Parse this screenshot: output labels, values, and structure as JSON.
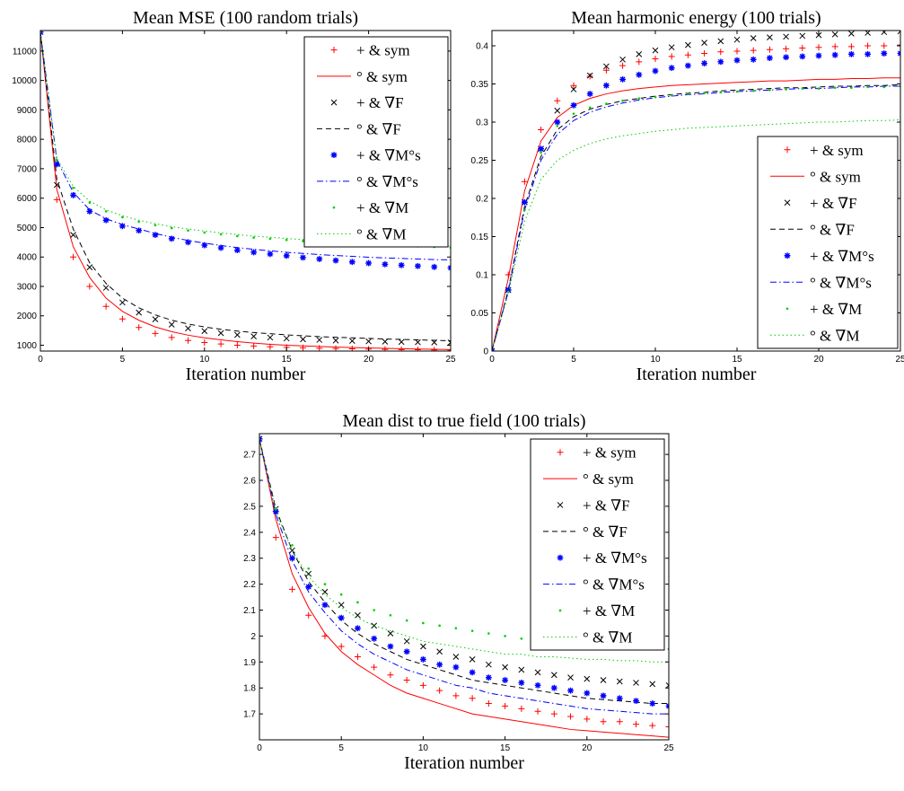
{
  "chart_data": [
    {
      "type": "line",
      "title": "Mean MSE (100 random trials)",
      "xlabel": "Iteration number",
      "ylabel": "",
      "xlim": [
        0,
        25
      ],
      "ylim": [
        800,
        11700
      ],
      "xticks": [
        0,
        5,
        10,
        15,
        20,
        25
      ],
      "yticks": [
        1000,
        2000,
        3000,
        4000,
        5000,
        6000,
        7000,
        8000,
        9000,
        10000,
        11000
      ],
      "grid": false,
      "legend_position": "top-right",
      "x": [
        0,
        1,
        2,
        3,
        4,
        5,
        6,
        7,
        8,
        9,
        10,
        11,
        12,
        13,
        14,
        15,
        16,
        17,
        18,
        19,
        20,
        21,
        22,
        23,
        24,
        25
      ],
      "series": [
        {
          "name": "+ & sym",
          "style": "plus",
          "color": "#ff0000",
          "values": [
            11650,
            5950,
            4000,
            3000,
            2320,
            1890,
            1600,
            1400,
            1260,
            1160,
            1090,
            1040,
            1000,
            970,
            945,
            925,
            910,
            895,
            885,
            875,
            865,
            858,
            850,
            845,
            840,
            835
          ]
        },
        {
          "name": "° & sym",
          "style": "solid",
          "color": "#ff0000",
          "values": [
            11650,
            6300,
            4350,
            3300,
            2600,
            2150,
            1850,
            1620,
            1460,
            1340,
            1250,
            1180,
            1120,
            1070,
            1030,
            1000,
            975,
            955,
            935,
            920,
            905,
            890,
            880,
            870,
            860,
            850
          ]
        },
        {
          "name": "+ & ∇F",
          "style": "x",
          "color": "#000000",
          "values": [
            11650,
            6450,
            4750,
            3650,
            2950,
            2450,
            2110,
            1880,
            1700,
            1570,
            1480,
            1410,
            1350,
            1300,
            1260,
            1230,
            1200,
            1180,
            1160,
            1145,
            1130,
            1120,
            1110,
            1100,
            1095,
            1090
          ]
        },
        {
          "name": "° & ∇F",
          "style": "dashed",
          "color": "#000000",
          "values": [
            11650,
            6650,
            4950,
            3800,
            3100,
            2600,
            2270,
            2030,
            1850,
            1720,
            1620,
            1540,
            1480,
            1430,
            1390,
            1350,
            1320,
            1290,
            1270,
            1250,
            1230,
            1210,
            1195,
            1180,
            1165,
            1150
          ]
        },
        {
          "name": "+ & ∇M°s",
          "style": "asterisk",
          "color": "#0000ff",
          "values": [
            11650,
            7150,
            6100,
            5550,
            5250,
            5050,
            4900,
            4750,
            4620,
            4500,
            4400,
            4310,
            4230,
            4160,
            4100,
            4040,
            3980,
            3930,
            3880,
            3830,
            3790,
            3750,
            3720,
            3690,
            3660,
            3630
          ]
        },
        {
          "name": "° & ∇M°s",
          "style": "dashdot",
          "color": "#0000ff",
          "values": [
            11650,
            7300,
            6200,
            5600,
            5300,
            5100,
            4950,
            4800,
            4670,
            4560,
            4470,
            4390,
            4320,
            4260,
            4210,
            4160,
            4120,
            4080,
            4050,
            4020,
            3990,
            3970,
            3950,
            3930,
            3910,
            3900
          ]
        },
        {
          "name": "+ & ∇M",
          "style": "dot",
          "color": "#00cc00",
          "values": [
            11650,
            7300,
            6350,
            5850,
            5550,
            5350,
            5200,
            5080,
            4980,
            4900,
            4830,
            4770,
            4710,
            4660,
            4620,
            4580,
            4540,
            4510,
            4480,
            4450,
            4420,
            4400,
            4380,
            4360,
            4340,
            4320
          ]
        },
        {
          "name": "° & ∇M",
          "style": "dotted",
          "color": "#00cc00",
          "values": [
            11650,
            7350,
            6400,
            5900,
            5600,
            5400,
            5250,
            5130,
            5030,
            4950,
            4880,
            4820,
            4760,
            4710,
            4670,
            4630,
            4590,
            4560,
            4530,
            4500,
            4470,
            4450,
            4430,
            4410,
            4390,
            4370
          ]
        }
      ]
    },
    {
      "type": "line",
      "title": "Mean harmonic energy (100 trials)",
      "xlabel": "Iteration number",
      "ylabel": "",
      "xlim": [
        0,
        25
      ],
      "ylim": [
        0,
        0.42
      ],
      "xticks": [
        0,
        5,
        10,
        15,
        20,
        25
      ],
      "yticks": [
        0,
        0.05,
        0.1,
        0.15,
        0.2,
        0.25,
        0.3,
        0.35,
        0.4
      ],
      "grid": false,
      "legend_position": "bottom-right",
      "x": [
        0,
        1,
        2,
        3,
        4,
        5,
        6,
        7,
        8,
        9,
        10,
        11,
        12,
        13,
        14,
        15,
        16,
        17,
        18,
        19,
        20,
        21,
        22,
        23,
        24,
        25
      ],
      "series": [
        {
          "name": "+ & sym",
          "style": "plus",
          "color": "#ff0000",
          "values": [
            0,
            0.1,
            0.222,
            0.29,
            0.328,
            0.348,
            0.36,
            0.368,
            0.374,
            0.379,
            0.383,
            0.386,
            0.388,
            0.39,
            0.392,
            0.393,
            0.394,
            0.395,
            0.396,
            0.397,
            0.398,
            0.399,
            0.399,
            0.4,
            0.4,
            0.401
          ]
        },
        {
          "name": "° & sym",
          "style": "solid",
          "color": "#ff0000",
          "values": [
            0,
            0.095,
            0.21,
            0.275,
            0.306,
            0.322,
            0.331,
            0.337,
            0.341,
            0.344,
            0.346,
            0.348,
            0.349,
            0.35,
            0.351,
            0.352,
            0.353,
            0.354,
            0.354,
            0.355,
            0.356,
            0.356,
            0.357,
            0.357,
            0.358,
            0.358
          ]
        },
        {
          "name": "+ & ∇F",
          "style": "x",
          "color": "#000000",
          "values": [
            0,
            0.08,
            0.195,
            0.265,
            0.315,
            0.343,
            0.361,
            0.373,
            0.382,
            0.389,
            0.394,
            0.398,
            0.401,
            0.404,
            0.406,
            0.408,
            0.41,
            0.411,
            0.412,
            0.413,
            0.414,
            0.415,
            0.416,
            0.417,
            0.418,
            0.419
          ]
        },
        {
          "name": "° & ∇F",
          "style": "dashed",
          "color": "#000000",
          "values": [
            0,
            0.08,
            0.19,
            0.255,
            0.29,
            0.307,
            0.317,
            0.323,
            0.328,
            0.331,
            0.334,
            0.336,
            0.338,
            0.339,
            0.341,
            0.342,
            0.343,
            0.344,
            0.345,
            0.345,
            0.346,
            0.347,
            0.347,
            0.348,
            0.348,
            0.349
          ]
        },
        {
          "name": "+ & ∇M°s",
          "style": "asterisk",
          "color": "#0000ff",
          "values": [
            0,
            0.08,
            0.195,
            0.265,
            0.3,
            0.322,
            0.337,
            0.348,
            0.356,
            0.362,
            0.367,
            0.371,
            0.374,
            0.377,
            0.379,
            0.381,
            0.382,
            0.384,
            0.385,
            0.386,
            0.387,
            0.388,
            0.389,
            0.389,
            0.39,
            0.39
          ]
        },
        {
          "name": "° & ∇M°s",
          "style": "dashdot",
          "color": "#0000ff",
          "values": [
            0,
            0.078,
            0.185,
            0.25,
            0.284,
            0.302,
            0.313,
            0.32,
            0.325,
            0.329,
            0.332,
            0.334,
            0.336,
            0.337,
            0.339,
            0.34,
            0.341,
            0.342,
            0.343,
            0.344,
            0.344,
            0.345,
            0.346,
            0.346,
            0.347,
            0.347
          ]
        },
        {
          "name": "+ & ∇M",
          "style": "dot",
          "color": "#00cc00",
          "values": [
            0,
            0.078,
            0.185,
            0.26,
            0.295,
            0.311,
            0.319,
            0.324,
            0.328,
            0.331,
            0.333,
            0.335,
            0.337,
            0.338,
            0.339,
            0.34,
            0.341,
            0.342,
            0.343,
            0.344,
            0.344,
            0.345,
            0.345,
            0.346,
            0.346,
            0.347
          ]
        },
        {
          "name": "° & ∇M",
          "style": "dotted",
          "color": "#00cc00",
          "values": [
            0,
            0.075,
            0.17,
            0.225,
            0.25,
            0.263,
            0.272,
            0.278,
            0.282,
            0.285,
            0.288,
            0.29,
            0.292,
            0.293,
            0.294,
            0.295,
            0.296,
            0.297,
            0.298,
            0.299,
            0.3,
            0.3,
            0.301,
            0.302,
            0.302,
            0.303
          ]
        }
      ]
    },
    {
      "type": "line",
      "title": "Mean dist to true field (100 trials)",
      "xlabel": "Iteration number",
      "ylabel": "",
      "xlim": [
        0,
        25
      ],
      "ylim": [
        1.6,
        2.78
      ],
      "xticks": [
        0,
        5,
        10,
        15,
        20,
        25
      ],
      "yticks": [
        1.7,
        1.8,
        1.9,
        2,
        2.1,
        2.2,
        2.3,
        2.4,
        2.5,
        2.6,
        2.7
      ],
      "grid": false,
      "legend_position": "top-right",
      "x": [
        0,
        1,
        2,
        3,
        4,
        5,
        6,
        7,
        8,
        9,
        10,
        11,
        12,
        13,
        14,
        15,
        16,
        17,
        18,
        19,
        20,
        21,
        22,
        23,
        24,
        25
      ],
      "series": [
        {
          "name": "+ & sym",
          "style": "plus",
          "color": "#ff0000",
          "values": [
            2.76,
            2.38,
            2.18,
            2.08,
            2.0,
            1.96,
            1.92,
            1.88,
            1.85,
            1.83,
            1.81,
            1.79,
            1.77,
            1.76,
            1.74,
            1.73,
            1.72,
            1.71,
            1.7,
            1.69,
            1.68,
            1.67,
            1.67,
            1.66,
            1.655,
            1.65
          ]
        },
        {
          "name": "° & sym",
          "style": "solid",
          "color": "#ff0000",
          "values": [
            2.76,
            2.45,
            2.24,
            2.11,
            2.01,
            1.94,
            1.89,
            1.85,
            1.81,
            1.78,
            1.76,
            1.74,
            1.72,
            1.7,
            1.69,
            1.68,
            1.67,
            1.66,
            1.65,
            1.64,
            1.635,
            1.63,
            1.625,
            1.62,
            1.615,
            1.61
          ]
        },
        {
          "name": "+ & ∇F",
          "style": "x",
          "color": "#000000",
          "values": [
            2.76,
            2.49,
            2.33,
            2.24,
            2.17,
            2.12,
            2.08,
            2.04,
            2.01,
            1.98,
            1.96,
            1.94,
            1.92,
            1.91,
            1.89,
            1.88,
            1.87,
            1.86,
            1.85,
            1.84,
            1.835,
            1.83,
            1.825,
            1.82,
            1.815,
            1.81
          ]
        },
        {
          "name": "° & ∇F",
          "style": "dashed",
          "color": "#000000",
          "values": [
            2.76,
            2.49,
            2.33,
            2.21,
            2.13,
            2.06,
            2.01,
            1.97,
            1.94,
            1.91,
            1.89,
            1.87,
            1.85,
            1.83,
            1.82,
            1.81,
            1.8,
            1.79,
            1.78,
            1.77,
            1.76,
            1.755,
            1.75,
            1.745,
            1.74,
            1.74
          ]
        },
        {
          "name": "+ & ∇M°s",
          "style": "asterisk",
          "color": "#0000ff",
          "values": [
            2.76,
            2.48,
            2.3,
            2.19,
            2.12,
            2.07,
            2.03,
            1.99,
            1.96,
            1.94,
            1.91,
            1.89,
            1.88,
            1.86,
            1.84,
            1.83,
            1.82,
            1.81,
            1.8,
            1.79,
            1.78,
            1.77,
            1.76,
            1.75,
            1.74,
            1.73
          ]
        },
        {
          "name": "° & ∇M°s",
          "style": "dashdot",
          "color": "#0000ff",
          "values": [
            2.76,
            2.47,
            2.29,
            2.17,
            2.09,
            2.02,
            1.97,
            1.93,
            1.9,
            1.87,
            1.85,
            1.83,
            1.81,
            1.8,
            1.78,
            1.77,
            1.76,
            1.75,
            1.74,
            1.73,
            1.72,
            1.715,
            1.71,
            1.705,
            1.7,
            1.7
          ]
        },
        {
          "name": "+ & ∇M",
          "style": "dot",
          "color": "#00cc00",
          "values": [
            2.76,
            2.49,
            2.35,
            2.26,
            2.2,
            2.16,
            2.13,
            2.1,
            2.08,
            2.06,
            2.05,
            2.04,
            2.03,
            2.02,
            2.01,
            2.0,
            1.99,
            1.98,
            1.98,
            1.97,
            1.97,
            1.96,
            1.96,
            1.955,
            1.95,
            1.95
          ]
        },
        {
          "name": "° & ∇M",
          "style": "dotted",
          "color": "#00cc00",
          "values": [
            2.76,
            2.48,
            2.33,
            2.23,
            2.16,
            2.11,
            2.07,
            2.04,
            2.02,
            2.0,
            1.98,
            1.97,
            1.96,
            1.95,
            1.94,
            1.93,
            1.93,
            1.92,
            1.92,
            1.915,
            1.91,
            1.91,
            1.905,
            1.905,
            1.9,
            1.9
          ]
        }
      ]
    }
  ]
}
